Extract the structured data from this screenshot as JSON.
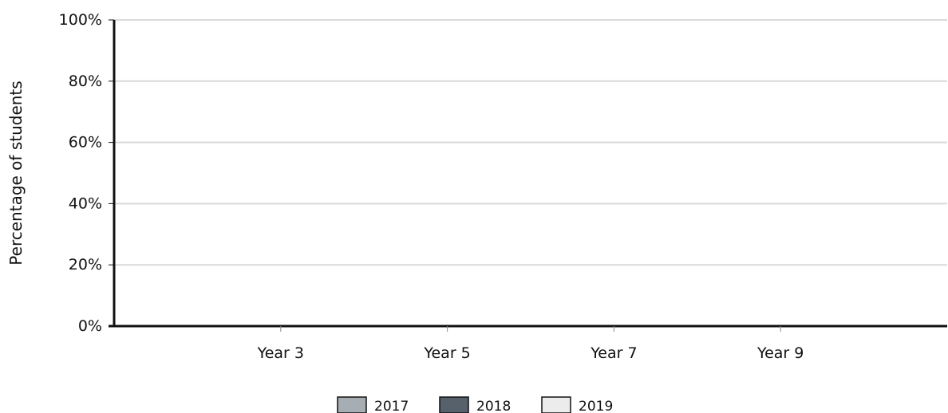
{
  "chart_data": {
    "type": "bar",
    "title": "",
    "xlabel": "",
    "ylabel": "Percentage of students",
    "ylim": [
      0,
      100
    ],
    "y_ticks": [
      0,
      20,
      40,
      60,
      80,
      100
    ],
    "y_tick_suffix": "%",
    "categories": [
      "Year 3",
      "Year 5",
      "Year 7",
      "Year 9"
    ],
    "series": [
      {
        "name": "2017",
        "color": "#a6adb3",
        "values": [
          null,
          null,
          null,
          null
        ]
      },
      {
        "name": "2018",
        "color": "#56616c",
        "values": [
          null,
          null,
          null,
          null
        ]
      },
      {
        "name": "2019",
        "color": "#ececec",
        "values": [
          null,
          null,
          null,
          null
        ]
      }
    ],
    "grid": true,
    "legend_position": "bottom-center",
    "colors": {
      "gridline": "#d9d9d9",
      "axis": "#111111",
      "legend_border": "#111111"
    }
  }
}
